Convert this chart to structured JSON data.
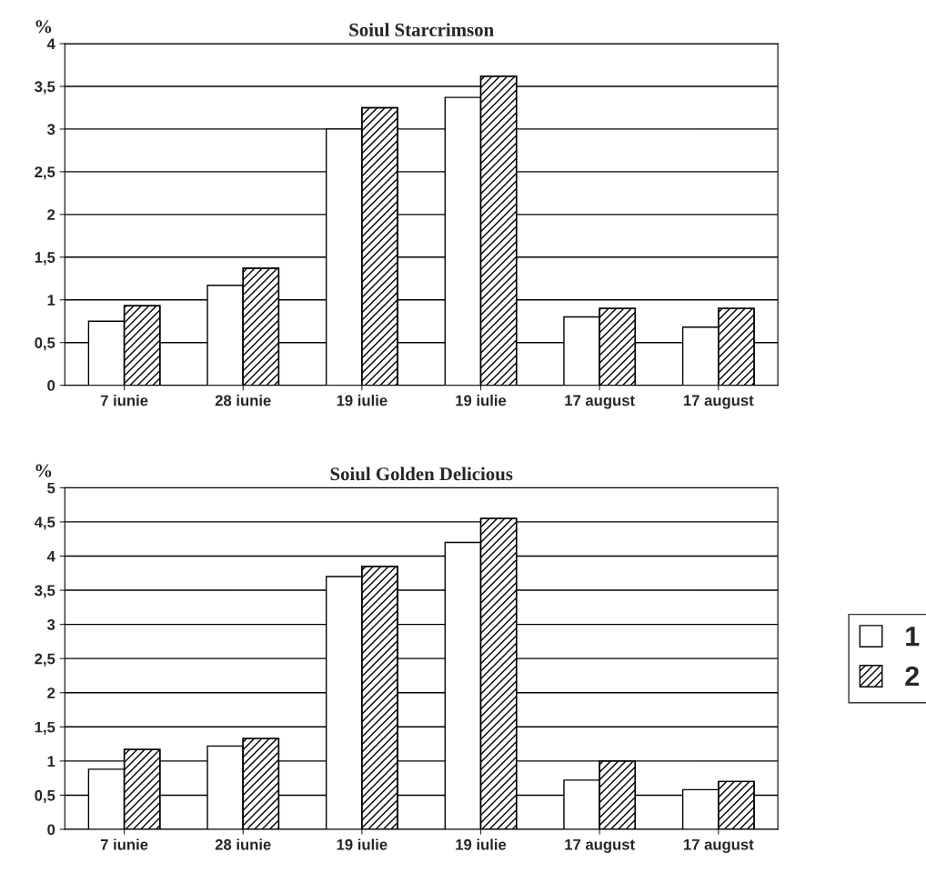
{
  "chart_data": [
    {
      "type": "bar",
      "title": "Soiul Starcrimson",
      "ylabel": "%",
      "categories": [
        "7 iunie",
        "28 iunie",
        "19 iulie",
        "19 iulie",
        "17 august",
        "17 august"
      ],
      "series": [
        {
          "name": "1",
          "color": "#ffffff",
          "values": [
            0.75,
            1.17,
            3.0,
            3.37,
            0.8,
            0.68
          ]
        },
        {
          "name": "2",
          "color": "#000000",
          "values": [
            0.93,
            1.37,
            3.25,
            3.62,
            0.9,
            0.9
          ]
        }
      ],
      "ylim": [
        0,
        4
      ],
      "yticks": [
        0,
        {
          "value": 0.5,
          "label": "0,5"
        },
        1,
        {
          "value": 1.5,
          "label": "1,5"
        },
        2,
        {
          "value": 2.5,
          "label": "2,5"
        },
        3,
        {
          "value": 3.5,
          "label": "3,5"
        },
        4
      ],
      "grid": "y",
      "legend": "right"
    },
    {
      "type": "bar",
      "title": "Soiul Golden Delicious",
      "ylabel": "%",
      "categories": [
        "7 iunie",
        "28 iunie",
        "19 iulie",
        "19 iulie",
        "17 august",
        "17 august"
      ],
      "series": [
        {
          "name": "1",
          "color": "#ffffff",
          "values": [
            0.88,
            1.22,
            3.7,
            4.2,
            0.72,
            0.58
          ]
        },
        {
          "name": "2",
          "color": "#000000",
          "values": [
            1.17,
            1.33,
            3.85,
            4.55,
            1.0,
            0.7
          ]
        }
      ],
      "ylim": [
        0,
        5
      ],
      "yticks": [
        0,
        {
          "value": 0.5,
          "label": "0,5"
        },
        1,
        {
          "value": 1.5,
          "label": "1,5"
        },
        2,
        {
          "value": 2.5,
          "label": "2,5"
        },
        3,
        {
          "value": 3.5,
          "label": "3,5"
        },
        4,
        {
          "value": 4.5,
          "label": "4,5"
        },
        5
      ],
      "grid": "y",
      "legend": "right"
    }
  ]
}
